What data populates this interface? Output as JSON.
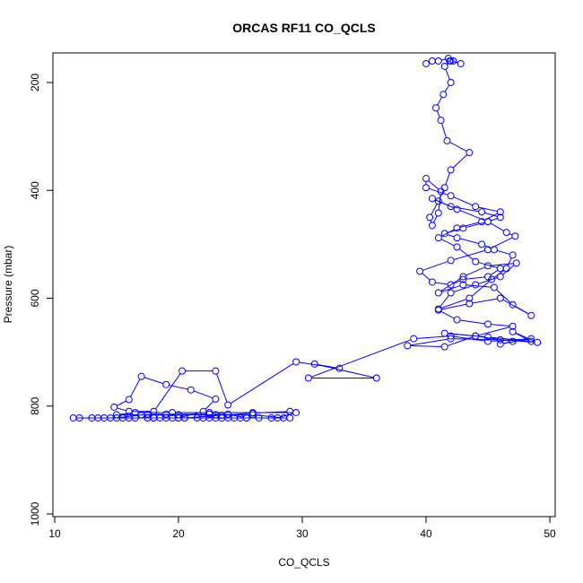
{
  "chart_data": {
    "type": "line",
    "title": "ORCAS RF11 CO_QCLS",
    "xlabel": "CO_QCLS",
    "ylabel": "Pressure (mbar)",
    "xlim": [
      10,
      50
    ],
    "ylim": [
      1000,
      150
    ],
    "y_axis_inverted": true,
    "grid": false,
    "xticks": [
      10,
      20,
      30,
      40,
      50
    ],
    "yticks": [
      200,
      400,
      600,
      800,
      1000
    ],
    "line_color": "#0000ff",
    "marker": "open-circle",
    "series": [
      {
        "x": [
          29.0,
          26.0,
          23.5,
          20.5,
          17.5,
          14.5,
          12.0,
          13.0,
          15.5,
          18.5,
          21.5,
          24.5,
          28.0,
          29.5,
          26.0,
          22.5,
          19.5,
          16.5,
          15.0,
          17.0,
          20.0,
          23.0,
          26.0,
          28.5,
          25.0,
          22.0,
          19.0,
          16.0,
          13.5,
          11.5,
          14.0,
          17.5,
          20.5,
          23.5,
          25.5,
          24.0,
          22.5,
          19.0,
          17.5,
          15.0,
          16.5,
          18.0,
          20.0,
          23.0,
          25.5,
          27.5,
          29.0,
          26.5,
          24.0,
          22.5,
          19.5,
          18.0,
          20.0,
          22.0,
          23.0,
          21.0,
          19.0,
          17.0,
          16.0,
          14.8,
          16.0,
          18.0,
          20.3,
          23.0,
          24.0,
          29.5,
          33.0,
          31.0,
          36.0,
          30.5,
          39.0,
          42.0,
          45.0,
          48.5,
          46.0,
          47.0,
          44.0,
          41.5,
          45.0,
          48.5,
          47.0,
          49.0,
          46.0,
          42.0,
          38.5,
          41.5,
          44.0,
          47.0,
          45.0,
          42.5,
          41.0,
          43.5,
          46.0,
          48.5,
          47.0,
          45.5,
          43.0,
          41.0,
          43.0,
          45.0,
          47.3,
          46.0,
          44.0,
          42.0,
          41.0,
          43.5,
          45.3,
          46.5,
          47.0,
          45.5,
          44.5,
          42.5,
          41.5,
          43.0,
          45.0,
          46.0,
          44.5,
          42.0,
          40.5,
          42.5,
          45.0,
          46.5,
          47.2,
          45.0,
          42.0,
          39.5,
          40.5,
          42.0,
          43.0,
          45.0,
          46.0,
          44.0,
          42.5,
          41.0,
          42.5,
          44.5,
          46.0,
          44.0,
          42.0,
          40.0,
          40.0,
          41.2,
          41.0,
          40.5,
          40.3,
          41.0,
          41.5,
          42.0,
          43.5,
          41.7,
          41.2,
          40.8,
          41.4,
          42.0,
          41.5,
          42.0,
          42.8,
          42.2,
          41.9,
          41.8,
          41.0,
          40.5,
          40.0
        ],
        "y": [
          810,
          813,
          817,
          822,
          822,
          822,
          822,
          822,
          822,
          822,
          822,
          822,
          822,
          812,
          812,
          812,
          812,
          812,
          816,
          816,
          816,
          816,
          816,
          822,
          822,
          822,
          822,
          822,
          822,
          822,
          822,
          822,
          822,
          822,
          822,
          815,
          815,
          815,
          815,
          822,
          822,
          822,
          822,
          822,
          822,
          822,
          822,
          822,
          822,
          822,
          822,
          822,
          822,
          810,
          787,
          770,
          760,
          745,
          788,
          802,
          810,
          810,
          735,
          735,
          798,
          718,
          730,
          722,
          748,
          748,
          675,
          670,
          680,
          675,
          685,
          680,
          670,
          665,
          672,
          680,
          662,
          682,
          677,
          675,
          688,
          690,
          670,
          652,
          648,
          640,
          622,
          610,
          600,
          632,
          612,
          580,
          575,
          590,
          560,
          540,
          535,
          560,
          575,
          590,
          620,
          600,
          565,
          545,
          520,
          510,
          500,
          488,
          480,
          470,
          458,
          450,
          440,
          430,
          415,
          435,
          458,
          478,
          485,
          510,
          530,
          550,
          570,
          575,
          565,
          560,
          545,
          532,
          505,
          488,
          470,
          458,
          440,
          430,
          410,
          395,
          378,
          402,
          442,
          465,
          450,
          420,
          395,
          362,
          330,
          308,
          270,
          247,
          222,
          200,
          170,
          160,
          165,
          160,
          160,
          155,
          160,
          160,
          165
        ],
        "name": ""
      }
    ]
  }
}
